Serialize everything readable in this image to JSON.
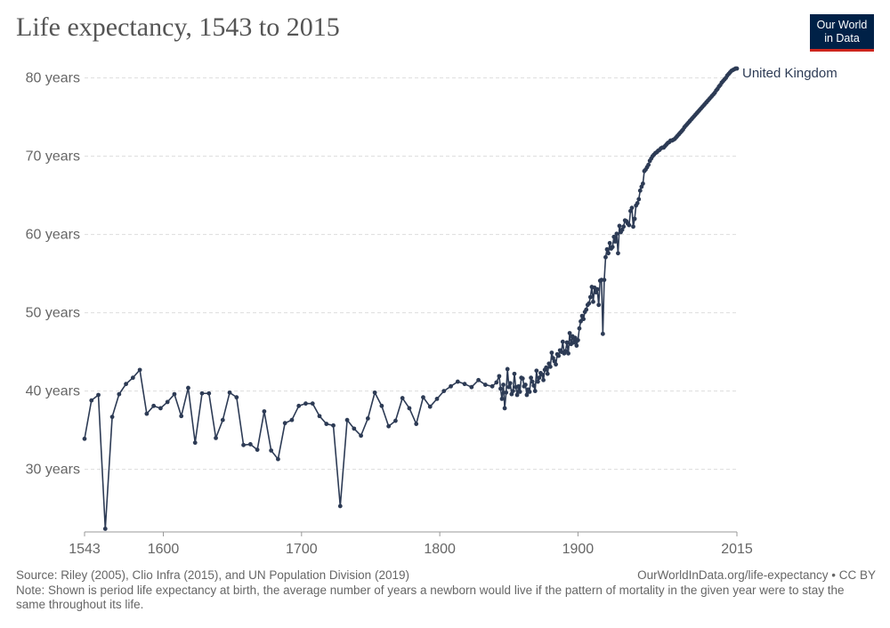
{
  "title": "Life expectancy, 1543 to 2015",
  "logo": {
    "line1": "Our World",
    "line2": "in Data",
    "color": "#002147",
    "accent": "#ce261e"
  },
  "source": "Source: Riley (2005), Clio Infra (2015), and UN Population Division (2019)",
  "credit": "OurWorldInData.org/life-expectancy • CC BY",
  "note": "Note: Shown is period life expectancy at birth, the average number of years a newborn would live if the pattern of mortality in the given year were to stay the same throughout its life.",
  "chart_data": {
    "type": "line",
    "title": "Life expectancy, 1543 to 2015",
    "xlim": [
      1543,
      2015
    ],
    "ylim": [
      22,
      82
    ],
    "x_ticks": [
      1543,
      1600,
      1700,
      1800,
      1900,
      2015
    ],
    "y_ticks": [
      {
        "value": 30,
        "label": "30 years"
      },
      {
        "value": 40,
        "label": "40 years"
      },
      {
        "value": 50,
        "label": "50 years"
      },
      {
        "value": 60,
        "label": "60 years"
      },
      {
        "value": 70,
        "label": "70 years"
      },
      {
        "value": 80,
        "label": "80 years"
      }
    ],
    "grid": "horizontal dashed",
    "line_color": "#2d3b55",
    "series": [
      {
        "name": "United Kingdom",
        "points": [
          [
            1543,
            33.9
          ],
          [
            1548,
            38.8
          ],
          [
            1553,
            39.5
          ],
          [
            1558,
            22.4
          ],
          [
            1563,
            36.7
          ],
          [
            1568,
            39.6
          ],
          [
            1573,
            40.9
          ],
          [
            1578,
            41.7
          ],
          [
            1583,
            42.7
          ],
          [
            1588,
            37.1
          ],
          [
            1593,
            38.1
          ],
          [
            1598,
            37.8
          ],
          [
            1603,
            38.6
          ],
          [
            1608,
            39.6
          ],
          [
            1613,
            36.8
          ],
          [
            1618,
            40.4
          ],
          [
            1623,
            33.4
          ],
          [
            1628,
            39.7
          ],
          [
            1633,
            39.7
          ],
          [
            1638,
            34.0
          ],
          [
            1643,
            36.3
          ],
          [
            1648,
            39.8
          ],
          [
            1653,
            39.2
          ],
          [
            1658,
            33.1
          ],
          [
            1663,
            33.2
          ],
          [
            1668,
            32.5
          ],
          [
            1673,
            37.4
          ],
          [
            1678,
            32.4
          ],
          [
            1683,
            31.3
          ],
          [
            1688,
            35.9
          ],
          [
            1693,
            36.3
          ],
          [
            1698,
            38.1
          ],
          [
            1703,
            38.4
          ],
          [
            1708,
            38.4
          ],
          [
            1713,
            36.8
          ],
          [
            1718,
            35.8
          ],
          [
            1723,
            35.6
          ],
          [
            1728,
            25.3
          ],
          [
            1733,
            36.3
          ],
          [
            1738,
            35.2
          ],
          [
            1743,
            34.3
          ],
          [
            1748,
            36.5
          ],
          [
            1753,
            39.8
          ],
          [
            1758,
            38.1
          ],
          [
            1763,
            35.5
          ],
          [
            1768,
            36.2
          ],
          [
            1773,
            39.1
          ],
          [
            1778,
            37.8
          ],
          [
            1783,
            35.8
          ],
          [
            1788,
            39.2
          ],
          [
            1793,
            38.0
          ],
          [
            1798,
            39.0
          ],
          [
            1803,
            40.0
          ],
          [
            1808,
            40.6
          ],
          [
            1813,
            41.2
          ],
          [
            1818,
            40.9
          ],
          [
            1823,
            40.5
          ],
          [
            1828,
            41.4
          ],
          [
            1833,
            40.8
          ],
          [
            1838,
            40.6
          ],
          [
            1841,
            41.1
          ],
          [
            1843,
            41.9
          ],
          [
            1844,
            40.3
          ],
          [
            1845,
            39.0
          ],
          [
            1846,
            40.8
          ],
          [
            1847,
            37.8
          ],
          [
            1848,
            39.8
          ],
          [
            1849,
            42.8
          ],
          [
            1850,
            40.5
          ],
          [
            1851,
            41.0
          ],
          [
            1852,
            39.6
          ],
          [
            1853,
            40.0
          ],
          [
            1854,
            42.2
          ],
          [
            1855,
            40.5
          ],
          [
            1856,
            39.5
          ],
          [
            1857,
            40.6
          ],
          [
            1858,
            39.9
          ],
          [
            1859,
            41.7
          ],
          [
            1860,
            41.6
          ],
          [
            1861,
            40.6
          ],
          [
            1862,
            40.8
          ],
          [
            1863,
            39.5
          ],
          [
            1864,
            40.2
          ],
          [
            1865,
            39.9
          ],
          [
            1866,
            41.7
          ],
          [
            1867,
            41.2
          ],
          [
            1868,
            40.7
          ],
          [
            1869,
            40.0
          ],
          [
            1870,
            42.6
          ],
          [
            1871,
            41.2
          ],
          [
            1872,
            41.7
          ],
          [
            1873,
            42.3
          ],
          [
            1874,
            42.1
          ],
          [
            1875,
            41.4
          ],
          [
            1876,
            42.7
          ],
          [
            1877,
            43.0
          ],
          [
            1878,
            42.2
          ],
          [
            1879,
            43.5
          ],
          [
            1880,
            43.1
          ],
          [
            1881,
            44.9
          ],
          [
            1882,
            44.2
          ],
          [
            1883,
            43.8
          ],
          [
            1884,
            43.4
          ],
          [
            1885,
            44.7
          ],
          [
            1886,
            44.5
          ],
          [
            1887,
            45.2
          ],
          [
            1888,
            45.0
          ],
          [
            1889,
            46.3
          ],
          [
            1890,
            44.8
          ],
          [
            1891,
            45.1
          ],
          [
            1892,
            46.2
          ],
          [
            1893,
            44.8
          ],
          [
            1894,
            47.4
          ],
          [
            1895,
            46.0
          ],
          [
            1896,
            47.0
          ],
          [
            1897,
            46.2
          ],
          [
            1898,
            46.8
          ],
          [
            1899,
            45.8
          ],
          [
            1900,
            46.5
          ],
          [
            1901,
            48.0
          ],
          [
            1902,
            48.9
          ],
          [
            1903,
            49.6
          ],
          [
            1904,
            49.2
          ],
          [
            1905,
            50.1
          ],
          [
            1906,
            50.4
          ],
          [
            1907,
            51.0
          ],
          [
            1908,
            51.2
          ],
          [
            1909,
            52.0
          ],
          [
            1910,
            53.3
          ],
          [
            1911,
            51.4
          ],
          [
            1912,
            53.2
          ],
          [
            1913,
            52.6
          ],
          [
            1914,
            53.0
          ],
          [
            1915,
            51.0
          ],
          [
            1916,
            54.1
          ],
          [
            1917,
            54.2
          ],
          [
            1918,
            47.3
          ],
          [
            1919,
            54.2
          ],
          [
            1920,
            57.1
          ],
          [
            1921,
            58.1
          ],
          [
            1922,
            57.6
          ],
          [
            1923,
            58.9
          ],
          [
            1924,
            58.2
          ],
          [
            1925,
            58.4
          ],
          [
            1926,
            59.7
          ],
          [
            1927,
            59.1
          ],
          [
            1928,
            60.1
          ],
          [
            1929,
            57.6
          ],
          [
            1930,
            61.1
          ],
          [
            1931,
            60.3
          ],
          [
            1932,
            60.6
          ],
          [
            1933,
            61.0
          ],
          [
            1934,
            61.8
          ],
          [
            1935,
            61.7
          ],
          [
            1936,
            61.4
          ],
          [
            1937,
            61.2
          ],
          [
            1938,
            63.0
          ],
          [
            1939,
            63.4
          ],
          [
            1940,
            61.0
          ],
          [
            1941,
            62.0
          ],
          [
            1942,
            63.7
          ],
          [
            1943,
            64.0
          ],
          [
            1944,
            64.5
          ],
          [
            1945,
            65.6
          ],
          [
            1946,
            66.1
          ],
          [
            1947,
            66.5
          ],
          [
            1948,
            68.1
          ],
          [
            1949,
            68.3
          ],
          [
            1950,
            68.6
          ],
          [
            1951,
            68.9
          ],
          [
            1952,
            69.4
          ],
          [
            1953,
            69.7
          ],
          [
            1954,
            70.0
          ],
          [
            1955,
            70.2
          ],
          [
            1956,
            70.4
          ],
          [
            1957,
            70.5
          ],
          [
            1958,
            70.7
          ],
          [
            1959,
            70.8
          ],
          [
            1960,
            71.0
          ],
          [
            1961,
            71.1
          ],
          [
            1962,
            71.1
          ],
          [
            1963,
            71.3
          ],
          [
            1964,
            71.5
          ],
          [
            1965,
            71.7
          ],
          [
            1966,
            71.8
          ],
          [
            1967,
            72.0
          ],
          [
            1968,
            72.0
          ],
          [
            1969,
            72.1
          ],
          [
            1970,
            72.2
          ],
          [
            1971,
            72.4
          ],
          [
            1972,
            72.6
          ],
          [
            1973,
            72.8
          ],
          [
            1974,
            73.0
          ],
          [
            1975,
            73.2
          ],
          [
            1976,
            73.4
          ],
          [
            1977,
            73.7
          ],
          [
            1978,
            73.9
          ],
          [
            1979,
            74.1
          ],
          [
            1980,
            74.3
          ],
          [
            1981,
            74.5
          ],
          [
            1982,
            74.7
          ],
          [
            1983,
            74.9
          ],
          [
            1984,
            75.1
          ],
          [
            1985,
            75.3
          ],
          [
            1986,
            75.5
          ],
          [
            1987,
            75.7
          ],
          [
            1988,
            75.9
          ],
          [
            1989,
            76.1
          ],
          [
            1990,
            76.3
          ],
          [
            1991,
            76.5
          ],
          [
            1992,
            76.7
          ],
          [
            1993,
            76.9
          ],
          [
            1994,
            77.1
          ],
          [
            1995,
            77.3
          ],
          [
            1996,
            77.5
          ],
          [
            1997,
            77.7
          ],
          [
            1998,
            77.9
          ],
          [
            1999,
            78.1
          ],
          [
            2000,
            78.4
          ],
          [
            2001,
            78.6
          ],
          [
            2002,
            78.9
          ],
          [
            2003,
            79.1
          ],
          [
            2004,
            79.4
          ],
          [
            2005,
            79.6
          ],
          [
            2006,
            79.8
          ],
          [
            2007,
            80.0
          ],
          [
            2008,
            80.3
          ],
          [
            2009,
            80.5
          ],
          [
            2010,
            80.7
          ],
          [
            2011,
            80.9
          ],
          [
            2012,
            81.0
          ],
          [
            2013,
            81.1
          ],
          [
            2014,
            81.2
          ],
          [
            2015,
            81.2
          ]
        ]
      }
    ]
  }
}
